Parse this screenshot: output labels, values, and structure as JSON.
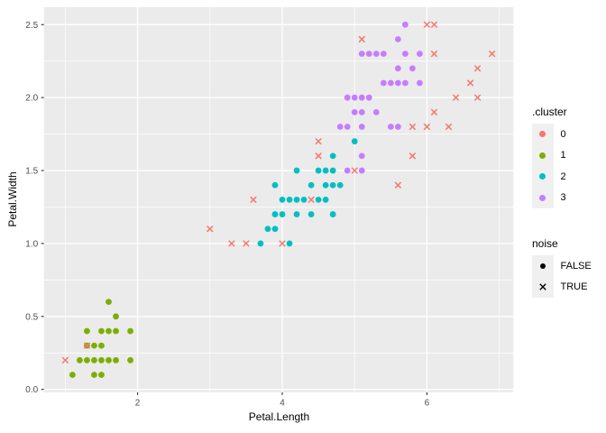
{
  "chart_data": {
    "type": "scatter",
    "title": "",
    "xlabel": "Petal.Length",
    "ylabel": "Petal.Width",
    "x_range": [
      0.705,
      7.195
    ],
    "y_range": [
      -0.02,
      2.62
    ],
    "x_major_ticks": [
      2,
      4,
      6
    ],
    "x_tick_labels": [
      "2",
      "4",
      "6"
    ],
    "x_minor_gridlines": [
      1,
      3,
      5,
      7
    ],
    "y_major_ticks": [
      0.0,
      0.5,
      1.0,
      1.5,
      2.0,
      2.5
    ],
    "y_tick_labels": [
      "0.0",
      "0.5",
      "1.0",
      "1.5",
      "2.0",
      "2.5"
    ],
    "y_minor_gridlines": [
      0.25,
      0.75,
      1.25,
      1.75,
      2.25
    ],
    "panel_bg": "#EBEBEB",
    "grid_color": "#FFFFFF",
    "tick_color": "#333333",
    "tick_label_color": "#4D4D4D",
    "legend_position": "right",
    "series": [
      {
        "name": "cluster 1 (noise FALSE)",
        "cluster": "1",
        "noise": false,
        "marker": "circle",
        "color": "#7CAE00",
        "points": [
          [
            1.1,
            0.1
          ],
          [
            1.4,
            0.1
          ],
          [
            1.5,
            0.1
          ],
          [
            1.2,
            0.2
          ],
          [
            1.3,
            0.2
          ],
          [
            1.4,
            0.2
          ],
          [
            1.5,
            0.2
          ],
          [
            1.6,
            0.2
          ],
          [
            1.7,
            0.2
          ],
          [
            1.9,
            0.2
          ],
          [
            1.3,
            0.3
          ],
          [
            1.4,
            0.3
          ],
          [
            1.5,
            0.3
          ],
          [
            1.3,
            0.4
          ],
          [
            1.5,
            0.4
          ],
          [
            1.6,
            0.4
          ],
          [
            1.7,
            0.4
          ],
          [
            1.9,
            0.4
          ],
          [
            1.7,
            0.5
          ],
          [
            1.6,
            0.6
          ]
        ]
      },
      {
        "name": "cluster 2 (noise FALSE)",
        "cluster": "2",
        "noise": false,
        "marker": "circle",
        "color": "#00BFC4",
        "points": [
          [
            3.7,
            1.0
          ],
          [
            4.1,
            1.0
          ],
          [
            3.8,
            1.1
          ],
          [
            3.9,
            1.1
          ],
          [
            3.9,
            1.2
          ],
          [
            4.0,
            1.2
          ],
          [
            4.2,
            1.2
          ],
          [
            4.4,
            1.2
          ],
          [
            4.7,
            1.2
          ],
          [
            4.0,
            1.3
          ],
          [
            4.1,
            1.3
          ],
          [
            4.2,
            1.3
          ],
          [
            4.3,
            1.3
          ],
          [
            4.5,
            1.3
          ],
          [
            4.6,
            1.3
          ],
          [
            3.9,
            1.4
          ],
          [
            4.4,
            1.4
          ],
          [
            4.6,
            1.4
          ],
          [
            4.7,
            1.4
          ],
          [
            4.8,
            1.4
          ],
          [
            4.2,
            1.5
          ],
          [
            4.5,
            1.5
          ],
          [
            4.6,
            1.5
          ],
          [
            4.7,
            1.5
          ],
          [
            4.7,
            1.6
          ],
          [
            5.0,
            1.7
          ]
        ]
      },
      {
        "name": "cluster 3 (noise FALSE)",
        "cluster": "3",
        "noise": false,
        "marker": "circle",
        "color": "#C77CFF",
        "points": [
          [
            4.9,
            1.5
          ],
          [
            5.1,
            1.5
          ],
          [
            5.1,
            1.6
          ],
          [
            4.8,
            1.8
          ],
          [
            4.9,
            1.8
          ],
          [
            5.1,
            1.8
          ],
          [
            5.5,
            1.8
          ],
          [
            5.6,
            1.8
          ],
          [
            5.0,
            1.9
          ],
          [
            5.1,
            1.9
          ],
          [
            5.3,
            1.9
          ],
          [
            4.9,
            2.0
          ],
          [
            5.0,
            2.0
          ],
          [
            5.1,
            2.0
          ],
          [
            5.2,
            2.0
          ],
          [
            5.4,
            2.1
          ],
          [
            5.5,
            2.1
          ],
          [
            5.6,
            2.1
          ],
          [
            5.7,
            2.1
          ],
          [
            5.9,
            2.1
          ],
          [
            5.6,
            2.2
          ],
          [
            5.8,
            2.2
          ],
          [
            5.1,
            2.3
          ],
          [
            5.2,
            2.3
          ],
          [
            5.3,
            2.3
          ],
          [
            5.4,
            2.3
          ],
          [
            5.7,
            2.3
          ],
          [
            5.9,
            2.3
          ],
          [
            5.6,
            2.4
          ],
          [
            5.7,
            2.5
          ]
        ]
      },
      {
        "name": "cluster 0 (noise TRUE)",
        "cluster": "0",
        "noise": true,
        "marker": "x",
        "color": "#F8766D",
        "points": [
          [
            1.0,
            0.2
          ],
          [
            1.3,
            0.3
          ],
          [
            3.0,
            1.1
          ],
          [
            3.3,
            1.0
          ],
          [
            3.5,
            1.0
          ],
          [
            3.6,
            1.3
          ],
          [
            4.0,
            1.0
          ],
          [
            4.4,
            1.3
          ],
          [
            4.5,
            1.6
          ],
          [
            4.5,
            1.7
          ],
          [
            5.0,
            1.5
          ],
          [
            5.6,
            1.4
          ],
          [
            5.1,
            2.4
          ],
          [
            5.8,
            1.6
          ],
          [
            5.8,
            1.8
          ],
          [
            6.0,
            1.8
          ],
          [
            6.0,
            2.5
          ],
          [
            6.1,
            1.9
          ],
          [
            6.1,
            2.3
          ],
          [
            6.1,
            2.5
          ],
          [
            6.3,
            1.8
          ],
          [
            6.4,
            2.0
          ],
          [
            6.6,
            2.1
          ],
          [
            6.7,
            2.0
          ],
          [
            6.7,
            2.2
          ],
          [
            6.9,
            2.3
          ]
        ]
      }
    ]
  },
  "legend_cluster": {
    "title": ".cluster",
    "items": [
      {
        "label": "0",
        "color": "#F8766D"
      },
      {
        "label": "1",
        "color": "#7CAE00"
      },
      {
        "label": "2",
        "color": "#00BFC4"
      },
      {
        "label": "3",
        "color": "#C77CFF"
      }
    ]
  },
  "legend_noise": {
    "title": "noise",
    "marker_color": "#000000",
    "items": [
      {
        "label": "FALSE",
        "marker": "circle"
      },
      {
        "label": "TRUE",
        "marker": "x"
      }
    ]
  }
}
